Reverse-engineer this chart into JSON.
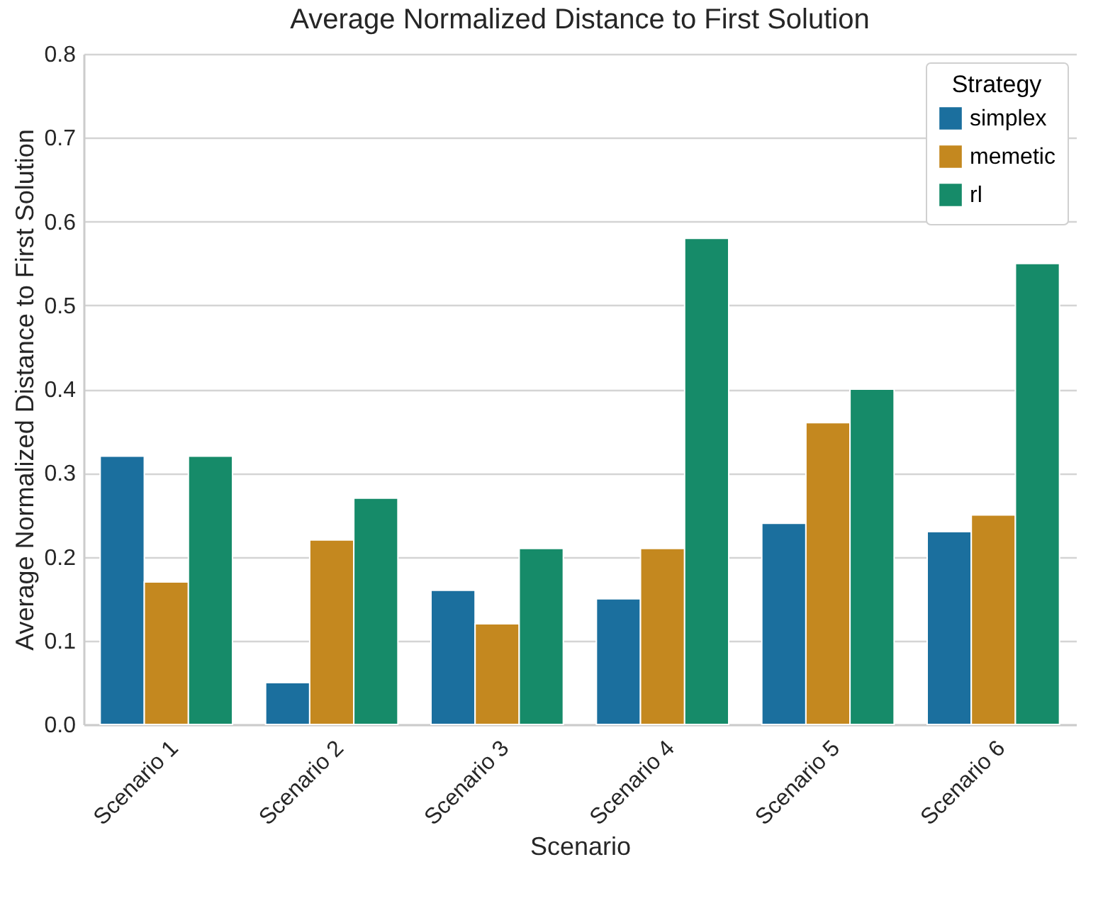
{
  "chart_data": {
    "type": "bar",
    "title": "Average Normalized Distance to First Solution",
    "xlabel": "Scenario",
    "ylabel": "Average Normalized Distance to First Solution",
    "legend_title": "Strategy",
    "categories": [
      "Scenario 1",
      "Scenario 2",
      "Scenario 3",
      "Scenario 4",
      "Scenario 5",
      "Scenario 6"
    ],
    "series": [
      {
        "name": "simplex",
        "color": "#1b6f9e",
        "values": [
          0.32,
          0.05,
          0.16,
          0.15,
          0.24,
          0.23
        ]
      },
      {
        "name": "memetic",
        "color": "#c4881f",
        "values": [
          0.17,
          0.22,
          0.12,
          0.21,
          0.36,
          0.25
        ]
      },
      {
        "name": "rl",
        "color": "#168b69",
        "values": [
          0.32,
          0.27,
          0.21,
          0.58,
          0.4,
          0.55
        ]
      }
    ],
    "ylim": [
      0,
      0.8
    ],
    "yticks": [
      {
        "value": 0,
        "label": "0.0"
      },
      0.1,
      0.2,
      0.3,
      0.4,
      0.5,
      0.6,
      0.7,
      0.8
    ],
    "grid": "y",
    "legend": "top right"
  }
}
